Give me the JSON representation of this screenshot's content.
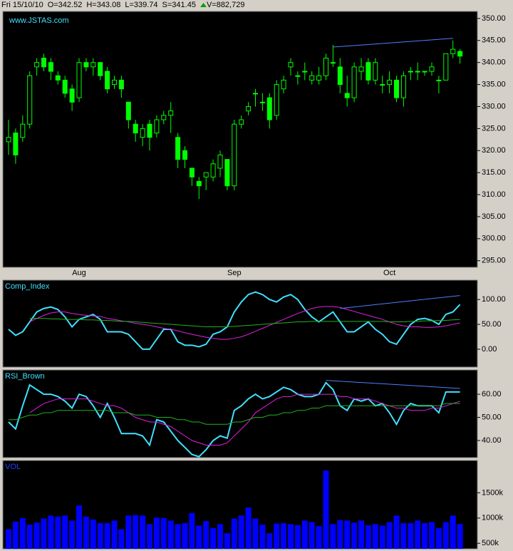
{
  "header": {
    "date": "Fri 15/10/10",
    "open": "O=342.52",
    "high": "H=343.08",
    "low": "L=339.74",
    "settle": "S=341.45",
    "volume": "V=882,729"
  },
  "chart_data": [
    {
      "type": "candlestick",
      "watermark": "www.JSTAS.com",
      "color": "#00ff00",
      "categories": [
        null,
        null,
        null,
        null,
        null,
        null,
        null,
        null,
        null,
        null,
        "Aug",
        null,
        null,
        null,
        null,
        null,
        null,
        null,
        null,
        null,
        null,
        null,
        null,
        null,
        null,
        null,
        null,
        null,
        null,
        null,
        null,
        null,
        "Sep",
        null,
        null,
        null,
        null,
        null,
        null,
        null,
        null,
        null,
        null,
        null,
        null,
        null,
        null,
        null,
        null,
        null,
        null,
        null,
        null,
        null,
        "Oct",
        null,
        null,
        null,
        null,
        null,
        null,
        null,
        null,
        null,
        null
      ],
      "open": [
        322,
        324,
        323,
        326,
        339,
        341,
        340,
        337,
        336,
        334,
        332,
        340,
        339,
        340,
        338,
        335,
        336,
        331,
        326,
        323,
        326,
        324,
        327,
        328,
        323,
        320,
        316,
        313,
        314,
        314,
        316,
        318,
        312,
        326,
        329,
        333,
        331,
        332,
        328,
        334,
        339,
        337,
        338,
        336,
        336,
        337,
        340,
        339,
        333,
        332,
        338,
        340,
        336,
        335,
        335,
        336,
        332,
        338,
        338,
        338,
        338,
        336,
        336,
        342,
        342.52
      ],
      "high": [
        327,
        325,
        328,
        338,
        341,
        342,
        341,
        338,
        337,
        335,
        341,
        341,
        341,
        340,
        339,
        337,
        337,
        331,
        327,
        326,
        327,
        328,
        329,
        331,
        324,
        321,
        316,
        314,
        315,
        318,
        320,
        318,
        327,
        328,
        331,
        334,
        333,
        333,
        336,
        337,
        341,
        338,
        340,
        338,
        339,
        342,
        344,
        341,
        337,
        340,
        341,
        341,
        341,
        337,
        338,
        337,
        338,
        339,
        340,
        338,
        340,
        337,
        342,
        345,
        343.08
      ],
      "low": [
        319,
        317,
        322,
        325,
        337,
        338,
        336,
        335,
        332,
        329,
        331,
        338,
        337,
        336,
        333,
        334,
        332,
        325,
        322,
        321,
        320,
        323,
        326,
        324,
        316,
        316,
        312,
        309,
        311,
        313,
        314,
        311,
        311,
        325,
        328,
        330,
        329,
        325,
        327,
        333,
        337,
        335,
        336,
        335,
        335,
        336,
        339,
        333,
        330,
        331,
        336,
        335,
        335,
        333,
        333,
        331,
        330,
        336,
        336,
        337,
        337,
        333,
        336,
        341,
        339.74
      ],
      "close": [
        323,
        319,
        326,
        337,
        340,
        339,
        338,
        336,
        333,
        331,
        340,
        339,
        340,
        337,
        334,
        336,
        334,
        327,
        324,
        325,
        323,
        327,
        328,
        329,
        318,
        318,
        314,
        312,
        315,
        317,
        319,
        312,
        326,
        327,
        330,
        333,
        331,
        327,
        335,
        336,
        340,
        337,
        338,
        337,
        337,
        341,
        340,
        335,
        332,
        339,
        339,
        336,
        340,
        335,
        336,
        332,
        337,
        338,
        338,
        338,
        339,
        336,
        342,
        343,
        341.45
      ],
      "ylim": [
        293.5,
        351.6
      ],
      "yticks": [
        {
          "value": 295,
          "label": "295.00"
        },
        {
          "value": 300,
          "label": "300.00"
        },
        {
          "value": 305,
          "label": "305.00"
        },
        {
          "value": 310,
          "label": "310.00"
        },
        {
          "value": 315,
          "label": "315.00"
        },
        {
          "value": 320,
          "label": "320.00"
        },
        {
          "value": 325,
          "label": "325.00"
        },
        {
          "value": 330,
          "label": "330.00"
        },
        {
          "value": 335,
          "label": "335.00"
        },
        {
          "value": 340,
          "label": "340.00"
        },
        {
          "value": 345,
          "label": "345.00"
        },
        {
          "value": 350,
          "label": "350.00"
        }
      ],
      "trendlines": [
        {
          "x": [
            46,
            63
          ],
          "y": [
            343.5,
            345.5
          ],
          "color": "#4f7fff"
        }
      ]
    },
    {
      "type": "line",
      "title": "Comp_Index",
      "ylim": [
        -36,
        139
      ],
      "yticks": [
        {
          "value": 0,
          "label": "0.00"
        },
        {
          "value": 50,
          "label": "50.00"
        },
        {
          "value": 100,
          "label": "100.00"
        }
      ],
      "series": [
        {
          "color": "#40e0ff",
          "values": [
            40,
            28,
            35,
            55,
            75,
            82,
            85,
            80,
            65,
            45,
            60,
            65,
            70,
            60,
            35,
            35,
            35,
            30,
            15,
            0,
            0,
            20,
            40,
            40,
            15,
            8,
            8,
            5,
            10,
            30,
            35,
            45,
            75,
            95,
            110,
            115,
            110,
            100,
            95,
            105,
            110,
            100,
            80,
            65,
            55,
            65,
            75,
            55,
            35,
            35,
            45,
            55,
            40,
            30,
            15,
            10,
            30,
            50,
            60,
            62,
            58,
            50,
            70,
            75,
            90
          ]
        },
        {
          "color": "#e020e0",
          "values": [
            null,
            null,
            null,
            55,
            62,
            68,
            73,
            75,
            75,
            72,
            70,
            68,
            67,
            66,
            62,
            60,
            57,
            55,
            52,
            50,
            48,
            45,
            42,
            40,
            37,
            33,
            30,
            27,
            24,
            22,
            20,
            20,
            22,
            25,
            30,
            36,
            42,
            48,
            54,
            60,
            66,
            72,
            77,
            82,
            85,
            86,
            86,
            84,
            80,
            76,
            72,
            68,
            64,
            60,
            55,
            50,
            47,
            45,
            45,
            44,
            44,
            45,
            47,
            50,
            53
          ]
        },
        {
          "color": "#20b020",
          "values": [
            null,
            null,
            null,
            62,
            62,
            62,
            61,
            61,
            60,
            60,
            60,
            59,
            59,
            58,
            58,
            57,
            56,
            56,
            55,
            54,
            53,
            52,
            51,
            50,
            49,
            48,
            47,
            46,
            45,
            45,
            45,
            45,
            46,
            47,
            48,
            49,
            50,
            51,
            52,
            53,
            54,
            55,
            55,
            56,
            56,
            56,
            56,
            56,
            56,
            56,
            56,
            56,
            56,
            56,
            55,
            55,
            55,
            56,
            56,
            57,
            57,
            58,
            58,
            59,
            60
          ]
        }
      ],
      "trendlines": [
        {
          "x": [
            47,
            64
          ],
          "y": [
            82,
            108
          ],
          "color": "#4f7fff"
        }
      ]
    },
    {
      "type": "line",
      "title": "RSI_Brown",
      "ylim": [
        32.6,
        70.5
      ],
      "yticks": [
        {
          "value": 40,
          "label": "40.00"
        },
        {
          "value": 50,
          "label": "50.00"
        },
        {
          "value": 60,
          "label": "60.00"
        }
      ],
      "series": [
        {
          "color": "#40e0ff",
          "values": [
            48,
            45,
            55,
            64,
            62,
            60,
            60,
            59,
            57,
            54,
            60,
            59,
            55,
            50,
            56,
            50,
            43,
            43,
            43,
            42,
            38,
            49,
            48,
            44,
            40,
            37,
            34,
            33,
            36,
            40,
            42,
            41,
            53,
            55,
            58,
            60,
            58,
            59,
            61,
            63,
            62,
            60,
            59,
            59,
            60,
            65,
            62,
            55,
            53,
            58,
            57,
            58,
            55,
            56,
            52,
            47,
            53,
            56,
            55,
            55,
            55,
            52,
            61,
            61,
            61
          ]
        },
        {
          "color": "#e020e0",
          "values": [
            null,
            null,
            null,
            52,
            54,
            56,
            57,
            58,
            58,
            58,
            58,
            58,
            57,
            56,
            55,
            55,
            54,
            52,
            50,
            49,
            48,
            48,
            47,
            46,
            44,
            42,
            40,
            39,
            38,
            38,
            38,
            39,
            42,
            45,
            48,
            52,
            54,
            56,
            58,
            59,
            59,
            60,
            60,
            60,
            60,
            60,
            60,
            59,
            59,
            58,
            58,
            58,
            57,
            56,
            55,
            54,
            54,
            53,
            53,
            53,
            54,
            54,
            55,
            56,
            57
          ]
        },
        {
          "color": "#20b020",
          "values": [
            49,
            49,
            50,
            51,
            51,
            52,
            52,
            53,
            53,
            53,
            53,
            53,
            53,
            53,
            53,
            52,
            52,
            52,
            51,
            51,
            51,
            50,
            50,
            50,
            49,
            49,
            48,
            48,
            47,
            47,
            47,
            47,
            48,
            48,
            49,
            50,
            50,
            51,
            51,
            52,
            52,
            53,
            53,
            54,
            54,
            55,
            55,
            55,
            55,
            55,
            55,
            55,
            55,
            55,
            55,
            55,
            55,
            55,
            55,
            55,
            55,
            55,
            56,
            56,
            56
          ]
        }
      ],
      "trendlines": [
        {
          "x": [
            45,
            64
          ],
          "y": [
            66,
            62.5
          ],
          "color": "#4f7fff"
        }
      ]
    },
    {
      "type": "bar",
      "title": "VOL",
      "color": "#0000ff",
      "ylim": [
        390000,
        2140000
      ],
      "yticks": [
        {
          "value": 500000,
          "label": "500k"
        },
        {
          "value": 1000000,
          "label": "1000k"
        },
        {
          "value": 1500000,
          "label": "1500k"
        }
      ],
      "values": [
        780000,
        930000,
        1000000,
        870000,
        910000,
        990000,
        1050000,
        1030000,
        1050000,
        950000,
        1250000,
        1030000,
        970000,
        900000,
        900000,
        950000,
        780000,
        1050000,
        1060000,
        1050000,
        880000,
        1010000,
        1000000,
        950000,
        880000,
        900000,
        1100000,
        850000,
        940000,
        800000,
        880000,
        700000,
        990000,
        1050000,
        1210000,
        990000,
        870000,
        700000,
        890000,
        900000,
        880000,
        860000,
        950000,
        920000,
        840000,
        1940000,
        880000,
        960000,
        950000,
        910000,
        950000,
        860000,
        880000,
        850000,
        920000,
        1050000,
        900000,
        900000,
        950000,
        900000,
        920000,
        800000,
        920000,
        1050000,
        882729
      ]
    }
  ]
}
